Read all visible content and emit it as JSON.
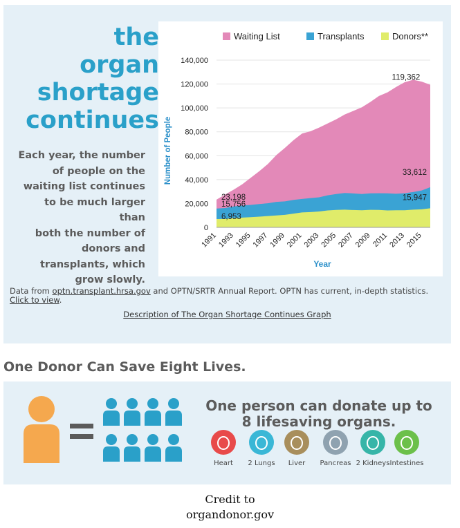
{
  "headline": [
    "the",
    "organ",
    "shortage",
    "continues"
  ],
  "description": [
    "Each year, the number",
    "of people on the",
    "waiting list continues",
    "to be much larger than",
    "both the number of",
    "donors and",
    "transplants, which",
    "grow slowly."
  ],
  "source": {
    "prefix": "Data from ",
    "link1": "optn.transplant.hrsa.gov",
    "middle": " and OPTN/SRTR Annual Report. OPTN has current, in-depth statistics. ",
    "link2": "Click to view",
    "suffix": "."
  },
  "description_link": "Description of The Organ Shortage Continues Graph",
  "section_title": "One Donor Can Save Eight Lives.",
  "tagline": "One person can donate up to 8 lifesaving organs.",
  "organs": [
    {
      "label": "Heart",
      "color": "#e84a4a",
      "icon": "heart-icon"
    },
    {
      "label": "2 Lungs",
      "color": "#3ab7d6",
      "icon": "lungs-icon"
    },
    {
      "label": "Liver",
      "color": "#a88e5c",
      "icon": "liver-icon"
    },
    {
      "label": "Pancreas",
      "color": "#8fa2b0",
      "icon": "pancreas-icon"
    },
    {
      "label": "2 Kidneys",
      "color": "#36b5a8",
      "icon": "kidneys-icon"
    },
    {
      "label": "Intestines",
      "color": "#6cc04a",
      "icon": "intestines-icon"
    }
  ],
  "credit": [
    "Credit to",
    "organdonor.gov"
  ],
  "colors": {
    "accent": "#2aa0c9",
    "donor_person": "#f5a84e",
    "recipients": "#2aa0c9",
    "panel_bg": "#e5f0f7"
  },
  "chart_data": {
    "type": "area",
    "xlabel": "Year",
    "ylabel": "Number of People",
    "ylim": [
      0,
      140000
    ],
    "yticks": [
      0,
      20000,
      40000,
      60000,
      80000,
      100000,
      120000,
      140000
    ],
    "ytick_labels": [
      "0",
      "20,000",
      "40,000",
      "60,000",
      "80,000",
      "100,000",
      "120,000",
      "140,000"
    ],
    "xticks": [
      1991,
      1993,
      1995,
      1997,
      1999,
      2001,
      2003,
      2005,
      2007,
      2009,
      2011,
      2013,
      2015
    ],
    "x": [
      1991,
      1992,
      1993,
      1994,
      1995,
      1996,
      1997,
      1998,
      1999,
      2000,
      2001,
      2002,
      2003,
      2004,
      2005,
      2006,
      2007,
      2008,
      2009,
      2010,
      2011,
      2012,
      2013,
      2014,
      2015,
      2016
    ],
    "legend_position": "top",
    "series": [
      {
        "name": "Waiting List",
        "color": "#e389b8",
        "values": [
          23198,
          27500,
          31500,
          36000,
          41500,
          47000,
          53000,
          60500,
          66500,
          73000,
          78500,
          80500,
          83500,
          87000,
          90500,
          94500,
          97500,
          100500,
          105000,
          110000,
          113000,
          117500,
          121500,
          123500,
          122000,
          119362
        ]
      },
      {
        "name": "Transplants",
        "color": "#3aa3d4",
        "values": [
          15756,
          16200,
          17500,
          18300,
          18800,
          19500,
          20200,
          21300,
          21800,
          23000,
          23800,
          24500,
          25200,
          26800,
          27900,
          28800,
          28400,
          27900,
          28500,
          28600,
          28500,
          28100,
          28600,
          29600,
          30900,
          33612
        ]
      },
      {
        "name": "Donors**",
        "color": "#e0ec6a",
        "values": [
          6953,
          7000,
          7800,
          8200,
          8500,
          9000,
          9500,
          10000,
          10500,
          11500,
          12500,
          12800,
          13300,
          14200,
          14600,
          14800,
          14500,
          14300,
          14700,
          14600,
          14200,
          14300,
          14300,
          14800,
          15100,
          15947
        ]
      }
    ],
    "annotations": [
      {
        "text": "119,362",
        "x": 2013,
        "y": 119362
      },
      {
        "text": "23,198",
        "x": 1991,
        "y": 23198
      },
      {
        "text": "15,756",
        "x": 1991,
        "y": 15756
      },
      {
        "text": "6,953",
        "x": 1991,
        "y": 6953
      },
      {
        "text": "33,612",
        "x": 2016,
        "y": 33612
      },
      {
        "text": "15,947",
        "x": 2016,
        "y": 15947
      }
    ]
  }
}
